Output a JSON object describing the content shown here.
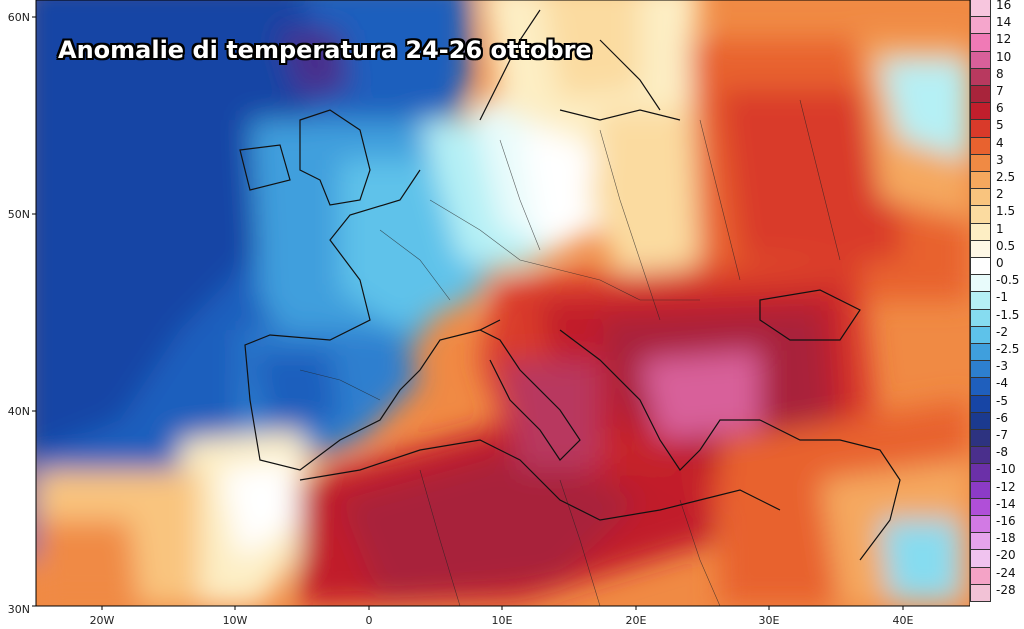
{
  "title": "Anomalie di temperatura 24-26 ottobre",
  "lat_labels": [
    "60N",
    "50N",
    "40N",
    "30N"
  ],
  "lon_labels": [
    "20W",
    "10W",
    "0",
    "10E",
    "20E",
    "30E",
    "40E"
  ],
  "colorbar": [
    {
      "label": "16",
      "color": "#f7c6de"
    },
    {
      "label": "14",
      "color": "#f5a6cc"
    },
    {
      "label": "12",
      "color": "#f07ab6"
    },
    {
      "label": "10",
      "color": "#d8609a"
    },
    {
      "label": "8",
      "color": "#b8395f"
    },
    {
      "label": "7",
      "color": "#a8243b"
    },
    {
      "label": "6",
      "color": "#c11e2c"
    },
    {
      "label": "5",
      "color": "#d93a2a"
    },
    {
      "label": "4",
      "color": "#e8622f"
    },
    {
      "label": "3",
      "color": "#f08a44"
    },
    {
      "label": "2.5",
      "color": "#f5a85e"
    },
    {
      "label": "2",
      "color": "#f9c47e"
    },
    {
      "label": "1.5",
      "color": "#fbdba0"
    },
    {
      "label": "1",
      "color": "#fdeec4"
    },
    {
      "label": "0.5",
      "color": "#fff8e6"
    },
    {
      "label": "0",
      "color": "#ffffff"
    },
    {
      "label": "-0.5",
      "color": "#e8fbfb"
    },
    {
      "label": "-1",
      "color": "#b5f0f5"
    },
    {
      "label": "-1.5",
      "color": "#86dcf0"
    },
    {
      "label": "-2",
      "color": "#5ec2ea"
    },
    {
      "label": "-2.5",
      "color": "#3f9fdd"
    },
    {
      "label": "-3",
      "color": "#2d7fcf"
    },
    {
      "label": "-4",
      "color": "#1f5fbd"
    },
    {
      "label": "-5",
      "color": "#1745a5"
    },
    {
      "label": "-6",
      "color": "#1b3a8f"
    },
    {
      "label": "-7",
      "color": "#2d3380"
    },
    {
      "label": "-8",
      "color": "#4a2f8c"
    },
    {
      "label": "-10",
      "color": "#6b30a8"
    },
    {
      "label": "-12",
      "color": "#8c3bc6"
    },
    {
      "label": "-14",
      "color": "#b04fd8"
    },
    {
      "label": "-16",
      "color": "#d27ae4"
    },
    {
      "label": "-18",
      "color": "#e6a4ec"
    },
    {
      "label": "-20",
      "color": "#f0c3ef"
    },
    {
      "label": "-24",
      "color": "#f4a3c6"
    },
    {
      "label": "-28",
      "color": "#f2c2d6"
    }
  ]
}
